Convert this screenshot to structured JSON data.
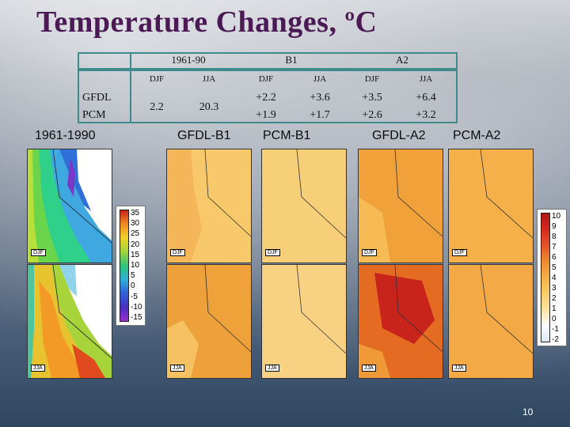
{
  "title": "Temperature Changes, ºC",
  "table": {
    "groups": [
      "1961-90",
      "B1",
      "A2"
    ],
    "seasons": [
      "DJF",
      "JJA",
      "DJF",
      "JJA",
      "DJF",
      "JJA"
    ],
    "row_labels": [
      "GFDL",
      "PCM"
    ],
    "base": [
      "2.2",
      "20.3"
    ],
    "gfdl": [
      "+2.2",
      "+3.6",
      "+3.5",
      "+6.4"
    ],
    "pcm": [
      "+1.9",
      "+1.7",
      "+2.6",
      "+3.2"
    ]
  },
  "panels": [
    "1961-1990",
    "GFDL-B1",
    "PCM-B1",
    "GFDL-A2",
    "PCM-A2"
  ],
  "season_tags": {
    "winter": "DJF",
    "summer": "JJA"
  },
  "colorbar_baseline": [
    "35",
    "30",
    "25",
    "20",
    "15",
    "10",
    "5",
    "0",
    "-5",
    "-10",
    "-15"
  ],
  "colorbar_change": [
    "10",
    "9",
    "8",
    "7",
    "6",
    "5",
    "4",
    "3",
    "2",
    "1",
    "0",
    "-1",
    "-2"
  ],
  "page_number": "10",
  "colors": {
    "title": "#4b1a55",
    "frame": "#3f8a8a",
    "light_orange": "#f7c96a",
    "orange": "#f0a23a",
    "deep_orange": "#e46b22",
    "red": "#c8241c"
  }
}
